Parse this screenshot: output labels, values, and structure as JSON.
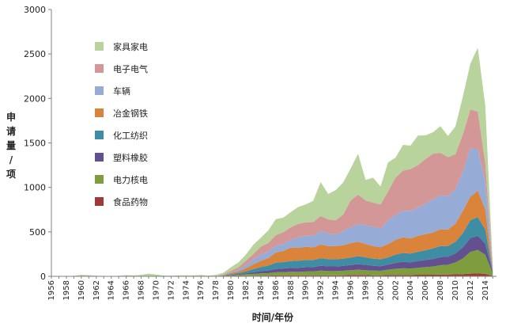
{
  "chart_data": {
    "type": "area",
    "stacked": true,
    "xlabel": "时间/年份",
    "ylabel": [
      "申",
      "请",
      "量",
      "/",
      "项"
    ],
    "ylim": [
      0,
      3000
    ],
    "yticks": [
      0,
      500,
      1000,
      1500,
      2000,
      2500,
      3000
    ],
    "xticks": [
      "1956",
      "1958",
      "1960",
      "1962",
      "1964",
      "1966",
      "1968",
      "1970",
      "1972",
      "1974",
      "1976",
      "1978",
      "1980",
      "1982",
      "1984",
      "1986",
      "1988",
      "1990",
      "1992",
      "1994",
      "1996",
      "1998",
      "2000",
      "2002",
      "2004",
      "2006",
      "2008",
      "2010",
      "2012",
      "2014"
    ],
    "grid": false,
    "legend_position": "top-left",
    "x": [
      1956,
      1957,
      1958,
      1959,
      1960,
      1961,
      1962,
      1963,
      1964,
      1965,
      1966,
      1967,
      1968,
      1969,
      1970,
      1971,
      1972,
      1973,
      1974,
      1975,
      1976,
      1977,
      1978,
      1979,
      1980,
      1981,
      1982,
      1983,
      1984,
      1985,
      1986,
      1987,
      1988,
      1989,
      1990,
      1991,
      1992,
      1993,
      1994,
      1995,
      1996,
      1997,
      1998,
      1999,
      2000,
      2001,
      2002,
      2003,
      2004,
      2005,
      2006,
      2007,
      2008,
      2009,
      2010,
      2011,
      2012,
      2013,
      2014,
      2015
    ],
    "series": [
      {
        "name": "食品药物",
        "color": "#9e3a37",
        "values": [
          0,
          0,
          0,
          0,
          0,
          0,
          0,
          0,
          0,
          0,
          0,
          0,
          0,
          0,
          0,
          0,
          0,
          0,
          0,
          0,
          0,
          0,
          0,
          1,
          2,
          3,
          5,
          6,
          8,
          8,
          10,
          10,
          10,
          10,
          10,
          10,
          12,
          11,
          11,
          12,
          14,
          15,
          14,
          12,
          12,
          14,
          15,
          16,
          16,
          18,
          18,
          18,
          20,
          20,
          22,
          25,
          30,
          32,
          28,
          5
        ]
      },
      {
        "name": "电力核电",
        "color": "#7e9e3e",
        "values": [
          0,
          1,
          0,
          2,
          3,
          5,
          1,
          1,
          0,
          1,
          3,
          2,
          3,
          4,
          2,
          1,
          1,
          2,
          2,
          2,
          3,
          1,
          3,
          6,
          10,
          14,
          18,
          22,
          26,
          28,
          35,
          38,
          42,
          40,
          44,
          45,
          52,
          48,
          48,
          50,
          55,
          60,
          55,
          52,
          50,
          62,
          70,
          75,
          72,
          78,
          85,
          92,
          105,
          110,
          135,
          175,
          245,
          265,
          215,
          25
        ]
      },
      {
        "name": "塑料橡胶",
        "color": "#644f8f",
        "values": [
          0,
          0,
          0,
          0,
          0,
          0,
          0,
          0,
          0,
          0,
          0,
          0,
          0,
          0,
          0,
          0,
          0,
          0,
          0,
          0,
          0,
          0,
          0,
          2,
          5,
          8,
          12,
          18,
          25,
          30,
          38,
          40,
          42,
          45,
          48,
          48,
          55,
          52,
          52,
          55,
          58,
          62,
          60,
          55,
          52,
          55,
          65,
          72,
          70,
          75,
          80,
          85,
          90,
          90,
          100,
          125,
          155,
          160,
          125,
          10
        ]
      },
      {
        "name": "化工纺织",
        "color": "#3f8da5",
        "values": [
          0,
          0,
          0,
          0,
          0,
          0,
          0,
          0,
          0,
          0,
          0,
          0,
          0,
          0,
          0,
          0,
          0,
          0,
          0,
          0,
          0,
          0,
          0,
          3,
          8,
          12,
          20,
          35,
          45,
          55,
          70,
          72,
          78,
          80,
          82,
          80,
          85,
          82,
          80,
          82,
          85,
          90,
          85,
          80,
          78,
          82,
          95,
          100,
          98,
          105,
          110,
          118,
          125,
          120,
          130,
          160,
          200,
          210,
          160,
          10
        ]
      },
      {
        "name": "冶金钢铁",
        "color": "#d9843a",
        "values": [
          0,
          0,
          0,
          0,
          0,
          0,
          0,
          0,
          0,
          0,
          0,
          0,
          0,
          0,
          0,
          0,
          0,
          0,
          0,
          0,
          0,
          0,
          0,
          4,
          12,
          20,
          35,
          55,
          70,
          85,
          115,
          125,
          150,
          145,
          148,
          142,
          155,
          148,
          148,
          150,
          160,
          162,
          150,
          140,
          135,
          150,
          165,
          175,
          170,
          180,
          180,
          180,
          190,
          185,
          205,
          250,
          265,
          295,
          225,
          15
        ]
      },
      {
        "name": "车辆",
        "color": "#96acd6",
        "values": [
          0,
          0,
          0,
          0,
          0,
          0,
          0,
          0,
          0,
          0,
          0,
          0,
          0,
          0,
          0,
          0,
          0,
          0,
          0,
          0,
          0,
          0,
          0,
          3,
          10,
          20,
          35,
          55,
          70,
          75,
          75,
          80,
          90,
          120,
          125,
          130,
          150,
          140,
          130,
          160,
          180,
          200,
          210,
          220,
          210,
          270,
          280,
          300,
          310,
          315,
          345,
          375,
          380,
          375,
          390,
          440,
          540,
          470,
          310,
          20
        ]
      },
      {
        "name": "电子电气",
        "color": "#d49797",
        "values": [
          0,
          0,
          0,
          0,
          0,
          0,
          0,
          0,
          0,
          0,
          0,
          0,
          0,
          0,
          0,
          0,
          0,
          0,
          0,
          0,
          0,
          0,
          0,
          5,
          15,
          25,
          50,
          60,
          90,
          95,
          120,
          130,
          140,
          150,
          150,
          155,
          170,
          160,
          160,
          185,
          300,
          330,
          280,
          270,
          270,
          320,
          420,
          450,
          470,
          480,
          500,
          510,
          480,
          440,
          390,
          420,
          440,
          420,
          210,
          20
        ]
      },
      {
        "name": "家具家电",
        "color": "#b8d39b",
        "values": [
          0,
          2,
          0,
          3,
          14,
          8,
          6,
          2,
          3,
          4,
          10,
          8,
          14,
          26,
          18,
          8,
          5,
          9,
          10,
          9,
          12,
          7,
          14,
          16,
          40,
          55,
          70,
          105,
          100,
          140,
          180,
          165,
          170,
          190,
          200,
          240,
          380,
          285,
          340,
          360,
          360,
          460,
          230,
          280,
          203,
          327,
          225,
          290,
          264,
          332,
          267,
          241,
          300,
          238,
          311,
          425,
          515,
          718,
          645,
          5
        ]
      }
    ]
  }
}
